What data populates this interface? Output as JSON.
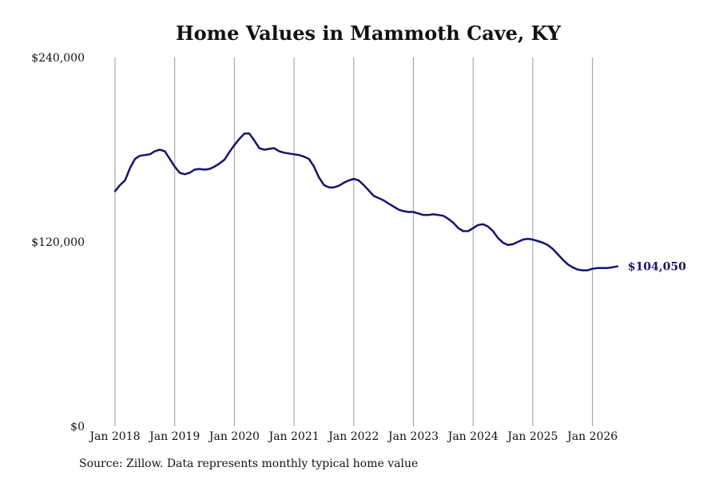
{
  "chart_data": {
    "type": "line",
    "title": "Home Values in Mammoth Cave, KY",
    "xlabel": "",
    "ylabel": "",
    "ylim": [
      0,
      240000
    ],
    "y_ticks": [
      0,
      120000,
      240000
    ],
    "y_tick_labels": [
      "$0",
      "$120,000",
      "$240,000"
    ],
    "x_ticks": [
      "2018-01",
      "2019-01",
      "2020-01",
      "2021-01",
      "2022-01",
      "2023-01",
      "2024-01",
      "2025-01",
      "2026-01"
    ],
    "x_tick_labels": [
      "Jan 2018",
      "Jan 2019",
      "Jan 2020",
      "Jan 2021",
      "Jan 2022",
      "Jan 2023",
      "Jan 2024",
      "Jan 2025",
      "Jan 2026"
    ],
    "xlim": [
      "2018-01",
      "2026-07"
    ],
    "grid": "vertical lines at x ticks",
    "last_value_label": "$104,050",
    "series": [
      {
        "color": "#14146b",
        "points": [
          [
            "2018-01",
            153000
          ],
          [
            "2018-02",
            157000
          ],
          [
            "2018-03",
            160000
          ],
          [
            "2018-04",
            168000
          ],
          [
            "2018-05",
            174000
          ],
          [
            "2018-06",
            176000
          ],
          [
            "2018-07",
            176500
          ],
          [
            "2018-08",
            177000
          ],
          [
            "2018-09",
            179000
          ],
          [
            "2018-10",
            180000
          ],
          [
            "2018-11",
            179000
          ],
          [
            "2018-12",
            174000
          ],
          [
            "2019-01",
            169000
          ],
          [
            "2019-02",
            165000
          ],
          [
            "2019-03",
            164000
          ],
          [
            "2019-04",
            165000
          ],
          [
            "2019-05",
            167000
          ],
          [
            "2019-06",
            167500
          ],
          [
            "2019-07",
            167000
          ],
          [
            "2019-08",
            167500
          ],
          [
            "2019-09",
            169000
          ],
          [
            "2019-10",
            171000
          ],
          [
            "2019-11",
            173500
          ],
          [
            "2019-12",
            178500
          ],
          [
            "2020-01",
            183000
          ],
          [
            "2020-02",
            187000
          ],
          [
            "2020-03",
            190500
          ],
          [
            "2020-04",
            190500
          ],
          [
            "2020-05",
            186000
          ],
          [
            "2020-06",
            181000
          ],
          [
            "2020-07",
            180000
          ],
          [
            "2020-08",
            180500
          ],
          [
            "2020-09",
            181000
          ],
          [
            "2020-10",
            179000
          ],
          [
            "2020-11",
            178000
          ],
          [
            "2020-12",
            177500
          ],
          [
            "2021-01",
            177000
          ],
          [
            "2021-02",
            176500
          ],
          [
            "2021-03",
            175500
          ],
          [
            "2021-04",
            174000
          ],
          [
            "2021-05",
            169000
          ],
          [
            "2021-06",
            162000
          ],
          [
            "2021-07",
            157000
          ],
          [
            "2021-08",
            155500
          ],
          [
            "2021-09",
            155500
          ],
          [
            "2021-10",
            156500
          ],
          [
            "2021-11",
            158500
          ],
          [
            "2021-12",
            160000
          ],
          [
            "2022-01",
            161000
          ],
          [
            "2022-02",
            160000
          ],
          [
            "2022-03",
            157000
          ],
          [
            "2022-04",
            153500
          ],
          [
            "2022-05",
            150000
          ],
          [
            "2022-06",
            148500
          ],
          [
            "2022-07",
            147000
          ],
          [
            "2022-08",
            145000
          ],
          [
            "2022-09",
            143000
          ],
          [
            "2022-10",
            141000
          ],
          [
            "2022-11",
            140000
          ],
          [
            "2022-12",
            139500
          ],
          [
            "2023-01",
            139500
          ],
          [
            "2023-02",
            138500
          ],
          [
            "2023-03",
            137500
          ],
          [
            "2023-04",
            137500
          ],
          [
            "2023-05",
            138000
          ],
          [
            "2023-06",
            137500
          ],
          [
            "2023-07",
            137000
          ],
          [
            "2023-08",
            135000
          ],
          [
            "2023-09",
            132500
          ],
          [
            "2023-10",
            129000
          ],
          [
            "2023-11",
            127000
          ],
          [
            "2023-12",
            127000
          ],
          [
            "2024-01",
            129000
          ],
          [
            "2024-02",
            131000
          ],
          [
            "2024-03",
            131500
          ],
          [
            "2024-04",
            130000
          ],
          [
            "2024-05",
            127000
          ],
          [
            "2024-06",
            122500
          ],
          [
            "2024-07",
            119500
          ],
          [
            "2024-08",
            118000
          ],
          [
            "2024-09",
            118500
          ],
          [
            "2024-10",
            120000
          ],
          [
            "2024-11",
            121500
          ],
          [
            "2024-12",
            122000
          ],
          [
            "2025-01",
            121500
          ],
          [
            "2025-02",
            120500
          ],
          [
            "2025-03",
            119500
          ],
          [
            "2025-04",
            118000
          ],
          [
            "2025-05",
            115500
          ],
          [
            "2025-06",
            112000
          ],
          [
            "2025-07",
            108500
          ],
          [
            "2025-08",
            105500
          ],
          [
            "2025-09",
            103500
          ],
          [
            "2025-10",
            102000
          ],
          [
            "2025-11",
            101500
          ],
          [
            "2025-12",
            101500
          ],
          [
            "2026-01",
            102500
          ],
          [
            "2026-02",
            103000
          ],
          [
            "2026-03",
            103000
          ],
          [
            "2026-04",
            103000
          ],
          [
            "2026-05",
            103500
          ],
          [
            "2026-06",
            104050
          ]
        ]
      }
    ]
  },
  "source": "Source: Zillow. Data represents monthly typical home value"
}
